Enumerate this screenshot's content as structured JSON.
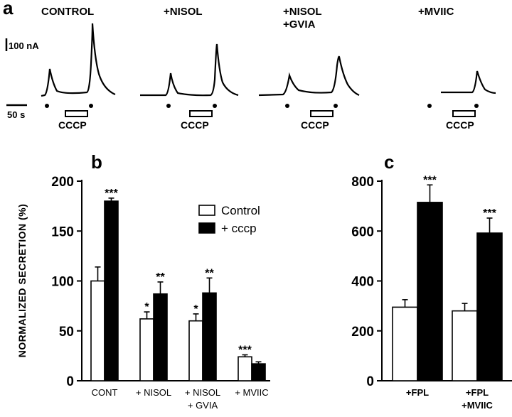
{
  "panel_a": {
    "letter": "a",
    "scale_current": "100 nA",
    "scale_time": "50 s",
    "stimulus_label": "CCCP",
    "conditions": [
      {
        "line1": "CONTROL",
        "line2": ""
      },
      {
        "line1": "+NISOL",
        "line2": ""
      },
      {
        "line1": "+NISOL",
        "line2": "+GVIA"
      },
      {
        "line1": "+MVIIC",
        "line2": ""
      }
    ]
  },
  "chart_data": [
    {
      "type": "bar",
      "panel": "b",
      "ylabel": "NORMALIZED SECRETION (%)",
      "ylim": [
        0,
        200
      ],
      "yticks": [
        0,
        50,
        100,
        150,
        200
      ],
      "categories": [
        {
          "line1": "CONT",
          "line2": ""
        },
        {
          "line1": "+ NISOL",
          "line2": ""
        },
        {
          "line1": "+ NISOL",
          "line2": "+ GVIA"
        },
        {
          "line1": "+ MVIIC",
          "line2": ""
        }
      ],
      "series": [
        {
          "name": "Control",
          "fill": "#ffffff",
          "values": [
            100,
            62,
            60,
            24
          ],
          "errors": [
            14,
            7,
            7,
            2
          ],
          "significance": [
            "",
            "*",
            "*",
            "***"
          ]
        },
        {
          "name": "+ cccp",
          "fill": "#000000",
          "values": [
            180,
            87,
            88,
            17
          ],
          "errors": [
            3,
            12,
            15,
            2
          ],
          "significance": [
            "***",
            "**",
            "**",
            ""
          ]
        }
      ],
      "legend_position": "top-right"
    },
    {
      "type": "bar",
      "panel": "c",
      "ylim": [
        0,
        800
      ],
      "yticks": [
        0,
        200,
        400,
        600,
        800
      ],
      "categories": [
        {
          "line1": "+FPL",
          "line2": ""
        },
        {
          "line1": "+FPL",
          "line2": "+MVIIC"
        }
      ],
      "series": [
        {
          "name": "",
          "fill": "#ffffff",
          "values": [
            295,
            280
          ],
          "errors": [
            30,
            30
          ],
          "significance": [
            "",
            ""
          ]
        },
        {
          "name": "",
          "fill": "#000000",
          "values": [
            715,
            592
          ],
          "errors": [
            70,
            60
          ],
          "significance": [
            "***",
            "***"
          ]
        }
      ]
    }
  ]
}
